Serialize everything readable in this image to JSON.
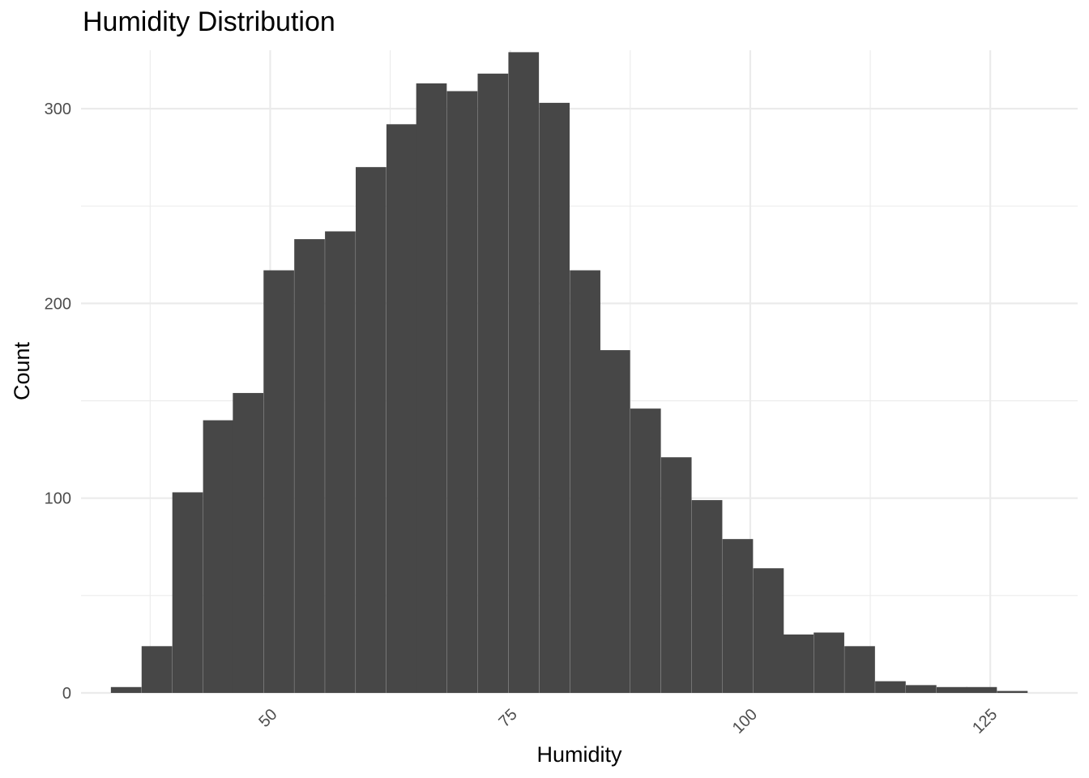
{
  "chart_data": {
    "type": "bar",
    "title": "Humidity Distribution",
    "xlabel": "Humidity",
    "ylabel": "Count",
    "bar_color": "#474747",
    "grid": true,
    "legend": "none",
    "xlim": [
      30.3,
      134.1
    ],
    "ylim": [
      0,
      330
    ],
    "x_ticks": [
      50,
      75,
      100,
      125
    ],
    "x_tick_labels": [
      "50",
      "75",
      "100",
      "125"
    ],
    "y_ticks": [
      0,
      100,
      200,
      300
    ],
    "y_tick_labels": [
      "0",
      "100",
      "200",
      "300"
    ],
    "bin_width": 3.18,
    "bins": [
      {
        "x": 35.0,
        "count": 3
      },
      {
        "x": 38.2,
        "count": 24
      },
      {
        "x": 41.4,
        "count": 103
      },
      {
        "x": 44.6,
        "count": 140
      },
      {
        "x": 47.7,
        "count": 154
      },
      {
        "x": 50.9,
        "count": 217
      },
      {
        "x": 54.1,
        "count": 233
      },
      {
        "x": 57.3,
        "count": 237
      },
      {
        "x": 60.5,
        "count": 270
      },
      {
        "x": 63.7,
        "count": 292
      },
      {
        "x": 66.8,
        "count": 313
      },
      {
        "x": 70.0,
        "count": 309
      },
      {
        "x": 73.2,
        "count": 318
      },
      {
        "x": 76.4,
        "count": 329
      },
      {
        "x": 79.6,
        "count": 303
      },
      {
        "x": 82.8,
        "count": 217
      },
      {
        "x": 85.9,
        "count": 176
      },
      {
        "x": 89.1,
        "count": 146
      },
      {
        "x": 92.3,
        "count": 121
      },
      {
        "x": 95.5,
        "count": 99
      },
      {
        "x": 98.7,
        "count": 79
      },
      {
        "x": 101.9,
        "count": 64
      },
      {
        "x": 105.0,
        "count": 30
      },
      {
        "x": 108.2,
        "count": 31
      },
      {
        "x": 111.4,
        "count": 24
      },
      {
        "x": 114.6,
        "count": 6
      },
      {
        "x": 117.8,
        "count": 4
      },
      {
        "x": 121.0,
        "count": 3
      },
      {
        "x": 124.1,
        "count": 3
      },
      {
        "x": 127.3,
        "count": 1
      }
    ]
  }
}
